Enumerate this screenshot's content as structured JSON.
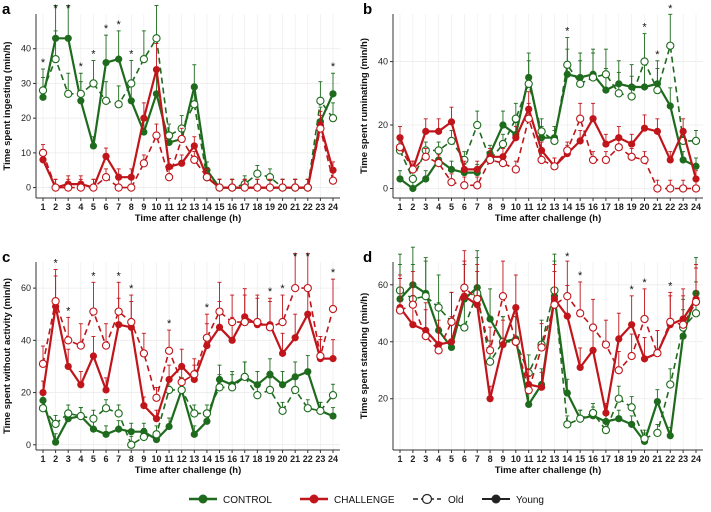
{
  "colors": {
    "control": "#1e6b1e",
    "challenge": "#c0151b",
    "grid": "#ebebeb",
    "axis": "#333333"
  },
  "legend": {
    "control": "CONTROL",
    "challenge": "CHALLENGE",
    "old": "Old",
    "young": "Young"
  },
  "chart_data": [
    {
      "panel": "a",
      "type": "line",
      "xlabel": "Time after challenge (h)",
      "ylabel": "Time spent ingesting (min/h)",
      "x": [
        1,
        2,
        3,
        4,
        5,
        6,
        7,
        8,
        9,
        10,
        11,
        12,
        13,
        14,
        15,
        16,
        17,
        18,
        19,
        20,
        21,
        22,
        23,
        24
      ],
      "ylim": [
        -3,
        50
      ],
      "yticks": [
        0,
        10,
        20,
        30,
        40
      ],
      "series": [
        {
          "name": "CONTROL Young",
          "group": "control",
          "age": "young",
          "values": [
            26,
            43,
            43,
            25,
            12,
            36,
            37,
            25,
            16,
            27,
            13,
            14,
            29,
            5,
            0,
            0,
            0,
            0,
            0,
            0,
            0,
            0,
            19,
            27
          ]
        },
        {
          "name": "CONTROL Old",
          "group": "control",
          "age": "old",
          "values": [
            28,
            37,
            27,
            27,
            30,
            25,
            24,
            30,
            37,
            43,
            15,
            17,
            24,
            3,
            0,
            0,
            1,
            4,
            3,
            0,
            0,
            0,
            25,
            20
          ]
        },
        {
          "name": "CHALLENGE Young",
          "group": "challenge",
          "age": "young",
          "values": [
            8,
            0,
            1,
            1,
            0,
            9,
            3,
            3,
            20,
            34,
            6,
            7,
            12,
            3,
            0,
            0,
            0,
            0,
            0,
            0,
            0,
            0,
            18,
            5
          ]
        },
        {
          "name": "CHALLENGE Old",
          "group": "challenge",
          "age": "old",
          "values": [
            10,
            0,
            0,
            0,
            0,
            3,
            0,
            0,
            7,
            15,
            3,
            14,
            8,
            3,
            0,
            0,
            0,
            0,
            0,
            0,
            0,
            0,
            17,
            2
          ]
        }
      ],
      "annotations": [
        {
          "x": 1,
          "label": "*"
        },
        {
          "x": 2,
          "label": "*"
        },
        {
          "x": 3,
          "label": "*"
        },
        {
          "x": 4,
          "label": "*"
        },
        {
          "x": 5,
          "label": "*"
        },
        {
          "x": 6,
          "label": "*"
        },
        {
          "x": 7,
          "label": "*"
        },
        {
          "x": 8,
          "label": "*"
        },
        {
          "x": 24,
          "label": "*"
        }
      ]
    },
    {
      "panel": "b",
      "type": "line",
      "xlabel": "Time after challenge (h)",
      "ylabel": "Time spent ruminating (min/h)",
      "x": [
        1,
        2,
        3,
        4,
        5,
        6,
        7,
        8,
        9,
        10,
        11,
        12,
        13,
        14,
        15,
        16,
        17,
        18,
        19,
        20,
        21,
        22,
        23,
        24
      ],
      "ylim": [
        -3,
        55
      ],
      "yticks": [
        0,
        20,
        40
      ],
      "series": [
        {
          "name": "CONTROL Young",
          "group": "control",
          "age": "young",
          "values": [
            3,
            0,
            3,
            9,
            6,
            5,
            5,
            11,
            20,
            17,
            35,
            16,
            16,
            36,
            35,
            36,
            31,
            33,
            32,
            32,
            33,
            26,
            9,
            7
          ]
        },
        {
          "name": "CONTROL Old",
          "group": "control",
          "age": "old",
          "values": [
            12,
            3,
            12,
            12,
            15,
            9,
            20,
            9,
            14,
            22,
            33,
            18,
            15,
            39,
            33,
            35,
            36,
            30,
            29,
            40,
            31,
            45,
            15,
            15
          ]
        },
        {
          "name": "CHALLENGE Young",
          "group": "challenge",
          "age": "young",
          "values": [
            16,
            6,
            18,
            18,
            21,
            6,
            6,
            10,
            10,
            16,
            25,
            12,
            7,
            11,
            15,
            22,
            14,
            16,
            14,
            19,
            18,
            9,
            18,
            3
          ]
        },
        {
          "name": "CHALLENGE Old",
          "group": "challenge",
          "age": "old",
          "values": [
            13,
            6,
            10,
            8,
            2,
            1,
            1,
            9,
            8,
            6,
            22,
            9,
            7,
            12,
            22,
            9,
            9,
            13,
            10,
            9,
            0,
            0,
            0,
            0
          ]
        }
      ],
      "annotations": [
        {
          "x": 14,
          "label": "*"
        },
        {
          "x": 20,
          "label": "*"
        },
        {
          "x": 21,
          "label": "*"
        },
        {
          "x": 22,
          "label": "*"
        }
      ]
    },
    {
      "panel": "c",
      "type": "line",
      "xlabel": "Time after challenge (h)",
      "ylabel": "Time spent without activity (min/h)",
      "x": [
        1,
        2,
        3,
        4,
        5,
        6,
        7,
        8,
        9,
        10,
        11,
        12,
        13,
        14,
        15,
        16,
        17,
        18,
        19,
        20,
        21,
        22,
        23,
        24
      ],
      "ylim": [
        -2,
        70
      ],
      "yticks": [
        0,
        20,
        40,
        60
      ],
      "series": [
        {
          "name": "CONTROL Young",
          "group": "control",
          "age": "young",
          "values": [
            17,
            1,
            10,
            11,
            6,
            4,
            6,
            5,
            5,
            2,
            7,
            21,
            4,
            9,
            25,
            23,
            26,
            23,
            27,
            23,
            26,
            28,
            13,
            11
          ]
        },
        {
          "name": "CONTROL Old",
          "group": "control",
          "age": "old",
          "values": [
            14,
            8,
            12,
            11,
            10,
            14,
            12,
            0,
            3,
            4,
            21,
            21,
            12,
            12,
            22,
            22,
            26,
            19,
            21,
            13,
            21,
            14,
            13,
            19
          ]
        },
        {
          "name": "CHALLENGE Young",
          "group": "challenge",
          "age": "young",
          "values": [
            20,
            53,
            30,
            23,
            34,
            21,
            46,
            45,
            15,
            10,
            25,
            30,
            25,
            38,
            45,
            40,
            49,
            46,
            46,
            35,
            41,
            50,
            33,
            33
          ]
        },
        {
          "name": "CHALLENGE Old",
          "group": "challenge",
          "age": "old",
          "values": [
            31,
            55,
            40,
            38,
            51,
            38,
            51,
            47,
            35,
            18,
            36,
            24,
            27,
            41,
            51,
            47,
            47,
            47,
            45,
            47,
            60,
            60,
            34,
            52
          ]
        }
      ],
      "annotations": [
        {
          "x": 2,
          "label": "*"
        },
        {
          "x": 3,
          "label": "*"
        },
        {
          "x": 5,
          "label": "*"
        },
        {
          "x": 7,
          "label": "*"
        },
        {
          "x": 8,
          "label": "*"
        },
        {
          "x": 11,
          "label": "*"
        },
        {
          "x": 14,
          "label": "*"
        },
        {
          "x": 19,
          "label": "*"
        },
        {
          "x": 20,
          "label": "*"
        },
        {
          "x": 21,
          "label": "*"
        },
        {
          "x": 22,
          "label": "*"
        },
        {
          "x": 24,
          "label": "*"
        }
      ]
    },
    {
      "panel": "d",
      "type": "line",
      "xlabel": "Time after challenge (h)",
      "ylabel": "Time spent standing (min/h)",
      "x": [
        1,
        2,
        3,
        4,
        5,
        6,
        7,
        8,
        9,
        10,
        11,
        12,
        13,
        14,
        15,
        16,
        17,
        18,
        19,
        20,
        21,
        22,
        23,
        24
      ],
      "ylim": [
        2,
        68
      ],
      "yticks": [
        20,
        40,
        60
      ],
      "series": [
        {
          "name": "CONTROL Young",
          "group": "control",
          "age": "young",
          "values": [
            55,
            60,
            57,
            44,
            38,
            55,
            59,
            48,
            40,
            41,
            18,
            25,
            56,
            22,
            13,
            14,
            12,
            13,
            11,
            5,
            19,
            7,
            42,
            57
          ]
        },
        {
          "name": "CONTROL Old",
          "group": "control",
          "age": "old",
          "values": [
            58,
            55,
            56,
            52,
            47,
            45,
            57,
            33,
            40,
            40,
            29,
            39,
            58,
            11,
            13,
            15,
            9,
            20,
            17,
            6,
            8,
            25,
            45,
            50
          ]
        },
        {
          "name": "CHALLENGE Young",
          "group": "challenge",
          "age": "young",
          "values": [
            52,
            46,
            44,
            39,
            40,
            56,
            53,
            20,
            39,
            52,
            25,
            24,
            55,
            49,
            31,
            37,
            15,
            41,
            46,
            34,
            36,
            46,
            48,
            55
          ]
        },
        {
          "name": "CHALLENGE Old",
          "group": "challenge",
          "age": "old",
          "values": [
            51,
            53,
            42,
            37,
            47,
            59,
            55,
            37,
            56,
            40,
            23,
            38,
            53,
            56,
            50,
            45,
            39,
            30,
            35,
            48,
            36,
            47,
            46,
            54
          ]
        }
      ],
      "annotations": [
        {
          "x": 14,
          "label": "*"
        },
        {
          "x": 15,
          "label": "*"
        },
        {
          "x": 19,
          "label": "*"
        },
        {
          "x": 20,
          "label": "*"
        },
        {
          "x": 22,
          "label": "*"
        }
      ]
    }
  ]
}
